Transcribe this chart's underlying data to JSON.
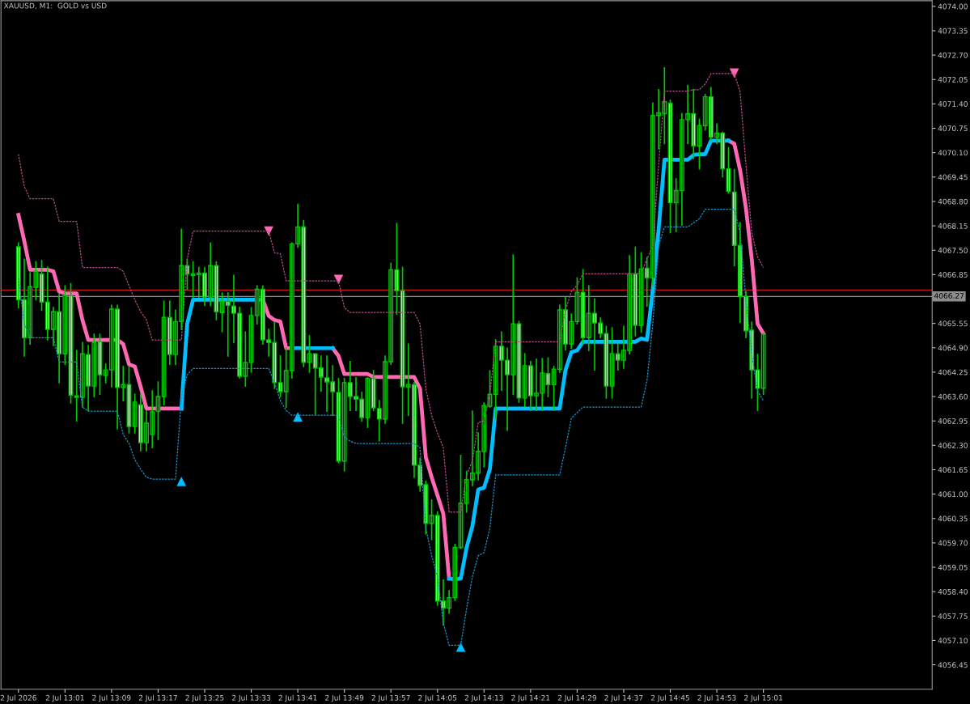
{
  "chart_data": {
    "type": "candlestick",
    "title": "XAUUSD, M1:  GOLD vs USD",
    "color": "#00c800",
    "x": [
      "2026-07-02T12:53",
      "2026-07-02T12:54",
      "2026-07-02T12:55",
      "2026-07-02T12:56",
      "2026-07-02T12:57",
      "2026-07-02T12:58",
      "2026-07-02T12:59",
      "2026-07-02T13:00",
      "2026-07-02T13:01",
      "2026-07-02T13:02",
      "2026-07-02T13:03",
      "2026-07-02T13:04",
      "2026-07-02T13:05",
      "2026-07-02T13:06",
      "2026-07-02T13:07",
      "2026-07-02T13:08",
      "2026-07-02T13:09",
      "2026-07-02T13:10",
      "2026-07-02T13:11",
      "2026-07-02T13:12",
      "2026-07-02T13:13",
      "2026-07-02T13:14",
      "2026-07-02T13:15",
      "2026-07-02T13:16",
      "2026-07-02T13:17",
      "2026-07-02T13:18",
      "2026-07-02T13:19",
      "2026-07-02T13:20",
      "2026-07-02T13:21",
      "2026-07-02T13:22",
      "2026-07-02T13:23",
      "2026-07-02T13:24",
      "2026-07-02T13:25",
      "2026-07-02T13:26",
      "2026-07-02T13:27",
      "2026-07-02T13:28",
      "2026-07-02T13:29",
      "2026-07-02T13:30",
      "2026-07-02T13:31",
      "2026-07-02T13:32",
      "2026-07-02T13:33",
      "2026-07-02T13:34",
      "2026-07-02T13:35",
      "2026-07-02T13:36",
      "2026-07-02T13:37",
      "2026-07-02T13:38",
      "2026-07-02T13:39",
      "2026-07-02T13:40",
      "2026-07-02T13:41",
      "2026-07-02T13:42",
      "2026-07-02T13:43",
      "2026-07-02T13:44",
      "2026-07-02T13:45",
      "2026-07-02T13:46",
      "2026-07-02T13:47",
      "2026-07-02T13:48",
      "2026-07-02T13:49",
      "2026-07-02T13:50",
      "2026-07-02T13:51",
      "2026-07-02T13:52",
      "2026-07-02T13:53",
      "2026-07-02T13:54",
      "2026-07-02T13:55",
      "2026-07-02T13:56",
      "2026-07-02T13:57",
      "2026-07-02T13:58",
      "2026-07-02T13:59",
      "2026-07-02T14:00",
      "2026-07-02T14:01",
      "2026-07-02T14:02",
      "2026-07-02T14:03",
      "2026-07-02T14:04",
      "2026-07-02T14:05",
      "2026-07-02T14:06",
      "2026-07-02T14:07",
      "2026-07-02T14:08",
      "2026-07-02T14:09",
      "2026-07-02T14:10",
      "2026-07-02T14:11",
      "2026-07-02T14:12",
      "2026-07-02T14:13",
      "2026-07-02T14:14",
      "2026-07-02T14:15",
      "2026-07-02T14:16",
      "2026-07-02T14:17",
      "2026-07-02T14:18",
      "2026-07-02T14:19",
      "2026-07-02T14:20",
      "2026-07-02T14:21",
      "2026-07-02T14:22",
      "2026-07-02T14:23",
      "2026-07-02T14:24",
      "2026-07-02T14:25",
      "2026-07-02T14:26",
      "2026-07-02T14:27",
      "2026-07-02T14:28",
      "2026-07-02T14:29",
      "2026-07-02T14:30",
      "2026-07-02T14:31",
      "2026-07-02T14:32",
      "2026-07-02T14:33",
      "2026-07-02T14:34",
      "2026-07-02T14:35",
      "2026-07-02T14:36",
      "2026-07-02T14:37",
      "2026-07-02T14:38",
      "2026-07-02T14:39",
      "2026-07-02T14:40",
      "2026-07-02T14:41",
      "2026-07-02T14:42",
      "2026-07-02T14:43",
      "2026-07-02T14:44",
      "2026-07-02T14:45",
      "2026-07-02T14:46",
      "2026-07-02T14:47",
      "2026-07-02T14:48",
      "2026-07-02T14:49",
      "2026-07-02T14:50",
      "2026-07-02T14:51",
      "2026-07-02T14:52",
      "2026-07-02T14:53",
      "2026-07-02T14:54",
      "2026-07-02T14:55",
      "2026-07-02T14:56",
      "2026-07-02T14:57",
      "2026-07-02T14:58",
      "2026-07-02T14:59",
      "2026-07-02T15:00",
      "2026-07-02T15:01"
    ],
    "ohlc": [
      [
        4067.59,
        4067.69,
        4065.97,
        4066.18
      ],
      [
        4066.18,
        4067.26,
        4064.68,
        4065.17
      ],
      [
        4065.17,
        4066.9,
        4065.0,
        4066.53
      ],
      [
        4066.51,
        4067.19,
        4066.18,
        4066.94
      ],
      [
        4066.87,
        4067.22,
        4065.9,
        4066.12
      ],
      [
        4066.12,
        4067.05,
        4065.11,
        4065.39
      ],
      [
        4065.39,
        4065.97,
        4064.96,
        4065.86
      ],
      [
        4065.86,
        4066.33,
        4063.97,
        4064.74
      ],
      [
        4064.74,
        4066.55,
        4064.46,
        4066.29
      ],
      [
        4066.29,
        4066.61,
        4063.43,
        4063.64
      ],
      [
        4063.62,
        4064.83,
        4062.95,
        4063.58
      ],
      [
        4063.58,
        4065.04,
        4063.32,
        4064.74
      ],
      [
        4064.72,
        4064.96,
        4063.23,
        4063.88
      ],
      [
        4063.88,
        4065.26,
        4063.6,
        4065.04
      ],
      [
        4065.06,
        4065.26,
        4063.66,
        4064.18
      ],
      [
        4064.16,
        4064.46,
        4063.97,
        4064.31
      ],
      [
        4064.31,
        4066.03,
        4063.86,
        4065.93
      ],
      [
        4065.93,
        4066.03,
        4062.74,
        4063.84
      ],
      [
        4063.84,
        4064.4,
        4063.49,
        4063.92
      ],
      [
        4063.92,
        4064.4,
        4062.63,
        4062.8
      ],
      [
        4062.8,
        4063.66,
        4062.63,
        4063.45
      ],
      [
        4063.38,
        4063.66,
        4062.16,
        4062.37
      ],
      [
        4062.37,
        4063.23,
        4062.16,
        4062.89
      ],
      [
        4062.59,
        4063.75,
        4062.24,
        4063.19
      ],
      [
        4063.21,
        4063.99,
        4062.46,
        4063.6
      ],
      [
        4063.6,
        4066.14,
        4063.38,
        4065.71
      ],
      [
        4065.71,
        4066.14,
        4064.46,
        4064.72
      ],
      [
        4064.72,
        4065.9,
        4064.46,
        4065.6
      ],
      [
        4065.6,
        4068.06,
        4065.39,
        4067.09
      ],
      [
        4067.09,
        4067.26,
        4066.46,
        4066.87
      ],
      [
        4066.83,
        4067.19,
        4066.25,
        4066.87
      ],
      [
        4066.85,
        4067.04,
        4066.25,
        4066.89
      ],
      [
        4066.89,
        4067.04,
        4066.03,
        4066.25
      ],
      [
        4066.25,
        4067.69,
        4066.03,
        4067.09
      ],
      [
        4067.09,
        4067.19,
        4065.65,
        4065.86
      ],
      [
        4065.84,
        4066.36,
        4065.33,
        4066.14
      ],
      [
        4066.14,
        4066.36,
        4064.68,
        4066.03
      ],
      [
        4066.01,
        4066.83,
        4065.04,
        4065.82
      ],
      [
        4065.82,
        4065.97,
        4064.1,
        4064.14
      ],
      [
        4064.14,
        4065.32,
        4063.88,
        4064.51
      ],
      [
        4064.51,
        4065.97,
        4064.25,
        4065.76
      ],
      [
        4065.76,
        4066.55,
        4065.54,
        4066.46
      ],
      [
        4066.46,
        4066.55,
        4065.0,
        4065.11
      ],
      [
        4065.11,
        4065.39,
        4064.68,
        4065.04
      ],
      [
        4065.04,
        4065.58,
        4063.82,
        4063.97
      ],
      [
        4063.97,
        4064.68,
        4063.6,
        4063.73
      ],
      [
        4063.73,
        4064.89,
        4063.32,
        4064.29
      ],
      [
        4064.29,
        4067.69,
        4064.1,
        4067.67
      ],
      [
        4067.67,
        4068.72,
        4067.58,
        4068.12
      ],
      [
        4068.12,
        4068.29,
        4064.4,
        4064.51
      ],
      [
        4064.51,
        4065.22,
        4064.25,
        4064.74
      ],
      [
        4064.74,
        4064.74,
        4063.13,
        4064.36
      ],
      [
        4064.36,
        4064.68,
        4063.75,
        4064.12
      ],
      [
        4064.1,
        4064.68,
        4063.21,
        4063.99
      ],
      [
        4063.99,
        4064.42,
        4063.1,
        4063.73
      ],
      [
        4063.71,
        4064.08,
        4061.84,
        4061.88
      ],
      [
        4061.88,
        4064.08,
        4061.62,
        4063.97
      ],
      [
        4063.97,
        4064.53,
        4063.23,
        4063.6
      ],
      [
        4063.6,
        4064.1,
        4063.23,
        4063.53
      ],
      [
        4063.53,
        4063.71,
        4062.95,
        4063.04
      ],
      [
        4063.04,
        4064.1,
        4062.78,
        4064.08
      ],
      [
        4064.08,
        4064.29,
        4063.23,
        4063.3
      ],
      [
        4063.28,
        4063.49,
        4062.42,
        4063.0
      ],
      [
        4063.0,
        4064.68,
        4062.89,
        4064.53
      ],
      [
        4064.53,
        4067.15,
        4064.46,
        4066.98
      ],
      [
        4066.98,
        4068.21,
        4065.8,
        4066.42
      ],
      [
        4066.42,
        4067.04,
        4062.89,
        4063.86
      ],
      [
        4063.86,
        4065.0,
        4063.1,
        4063.92
      ],
      [
        4063.92,
        4063.97,
        4061.45,
        4061.77
      ],
      [
        4061.77,
        4061.95,
        4061.08,
        4061.23
      ],
      [
        4061.25,
        4061.34,
        4059.94,
        4060.22
      ],
      [
        4060.22,
        4060.84,
        4059.79,
        4060.43
      ],
      [
        4060.43,
        4060.52,
        4058.04,
        4058.15
      ],
      [
        4058.15,
        4058.71,
        4057.51,
        4057.96
      ],
      [
        4057.96,
        4058.43,
        4057.83,
        4058.24
      ],
      [
        4058.24,
        4059.66,
        4058.17,
        4059.58
      ],
      [
        4059.58,
        4062.03,
        4059.55,
        4060.76
      ],
      [
        4060.76,
        4061.6,
        4060.52,
        4061.38
      ],
      [
        4061.38,
        4063.21,
        4061.23,
        4061.56
      ],
      [
        4061.56,
        4062.63,
        4061.38,
        4062.14
      ],
      [
        4062.14,
        4063.43,
        4061.73,
        4063.36
      ],
      [
        4063.34,
        4064.29,
        4063.32,
        4063.66
      ],
      [
        4063.66,
        4065.11,
        4063.02,
        4064.94
      ],
      [
        4064.94,
        4065.32,
        4063.77,
        4064.57
      ],
      [
        4064.57,
        4064.89,
        4062.7,
        4064.18
      ],
      [
        4064.18,
        4067.37,
        4063.66,
        4065.54
      ],
      [
        4065.54,
        4065.6,
        4063.45,
        4063.56
      ],
      [
        4063.56,
        4064.74,
        4063.34,
        4064.42
      ],
      [
        4064.42,
        4064.53,
        4063.23,
        4063.62
      ],
      [
        4063.62,
        4064.59,
        4063.23,
        4063.69
      ],
      [
        4063.69,
        4064.61,
        4063.23,
        4064.23
      ],
      [
        4064.21,
        4064.63,
        4063.6,
        4063.92
      ],
      [
        4063.92,
        4064.4,
        4063.23,
        4064.33
      ],
      [
        4064.33,
        4066.03,
        4064.25,
        4065.91
      ],
      [
        4065.91,
        4066.25,
        4064.85,
        4065.0
      ],
      [
        4065.0,
        4065.8,
        4064.89,
        4065.6
      ],
      [
        4065.6,
        4066.76,
        4065.54,
        4066.38
      ],
      [
        4066.38,
        4066.98,
        4065.0,
        4065.17
      ],
      [
        4065.17,
        4066.55,
        4064.83,
        4065.82
      ],
      [
        4065.82,
        4066.2,
        4064.31,
        4065.56
      ],
      [
        4065.56,
        4065.69,
        4065.17,
        4065.28
      ],
      [
        4065.28,
        4065.47,
        4063.56,
        4063.88
      ],
      [
        4063.88,
        4065.43,
        4063.56,
        4064.74
      ],
      [
        4064.74,
        4065.02,
        4064.31,
        4064.57
      ],
      [
        4064.57,
        4065.47,
        4064.36,
        4064.83
      ],
      [
        4064.83,
        4067.35,
        4064.74,
        4066.87
      ],
      [
        4066.87,
        4067.58,
        4065.22,
        4065.5
      ],
      [
        4065.5,
        4067.43,
        4065.32,
        4067.0
      ],
      [
        4067.02,
        4067.3,
        4066.01,
        4066.76
      ],
      [
        4066.76,
        4071.42,
        4066.55,
        4071.09
      ],
      [
        4071.09,
        4071.78,
        4070.21,
        4071.16
      ],
      [
        4071.14,
        4072.36,
        4070.34,
        4071.46
      ],
      [
        4071.42,
        4071.5,
        4067.97,
        4068.77
      ],
      [
        4068.77,
        4069.4,
        4068.0,
        4069.09
      ],
      [
        4069.09,
        4071.14,
        4068.17,
        4070.98
      ],
      [
        4070.98,
        4071.89,
        4070.34,
        4071.14
      ],
      [
        4071.14,
        4071.78,
        4069.95,
        4070.28
      ],
      [
        4070.28,
        4070.99,
        4069.67,
        4070.82
      ],
      [
        4070.82,
        4071.65,
        4070.71,
        4071.59
      ],
      [
        4071.59,
        4071.83,
        4070.45,
        4070.51
      ],
      [
        4070.51,
        4070.86,
        4070.34,
        4070.62
      ],
      [
        4070.62,
        4070.64,
        4069.46,
        4069.67
      ],
      [
        4069.67,
        4070.23,
        4069.03,
        4069.07
      ],
      [
        4069.05,
        4069.65,
        4067.09,
        4067.63
      ],
      [
        4067.63,
        4068.23,
        4065.58,
        4066.27
      ],
      [
        4066.27,
        4066.4,
        4065.17,
        4065.35
      ],
      [
        4065.37,
        4065.58,
        4063.56,
        4064.31
      ],
      [
        4064.31,
        4064.72,
        4063.23,
        4063.82
      ],
      [
        4063.82,
        4065.28,
        4063.66,
        4065.26
      ]
    ],
    "series": [
      {
        "type": "line",
        "color": "#b04c86",
        "line_style": "dashed",
        "values": [
          4070.06,
          4069.2,
          4068.87,
          4068.87,
          4068.87,
          4068.87,
          4068.87,
          4068.27,
          4068.27,
          4068.27,
          4068.27,
          4067.04,
          4067.04,
          4067.04,
          4067.04,
          4067.04,
          4067.04,
          4067.04,
          4066.94,
          4066.55,
          4066.18,
          4065.86,
          4065.64,
          4065.11,
          4065.11,
          4065.11,
          4065.11,
          4065.11,
          4065.11,
          4067.26,
          4068.01,
          4068.01,
          4068.01,
          4068.01,
          4068.01,
          4068.01,
          4068.01,
          4068.01,
          4068.01,
          4068.01,
          4068.01,
          4068.01,
          4068.01,
          4068.01,
          4067.43,
          4067.41,
          4066.68,
          4066.68,
          4066.68,
          4066.68,
          4066.68,
          4066.68,
          4066.68,
          4066.68,
          4066.68,
          4066.68,
          4065.97,
          4065.84,
          4065.84,
          4065.84,
          4065.84,
          4065.84,
          4065.84,
          4065.84,
          4065.84,
          4065.84,
          4065.84,
          4065.84,
          4065.84,
          4065.54,
          4063.81,
          4063.1,
          4062.63,
          4062.24,
          4060.52,
          4060.52,
          4060.52,
          4061.51,
          4061.88,
          4062.91,
          4062.95,
          4063.66,
          4065.06,
          4065.06,
          4065.06,
          4065.06,
          4065.06,
          4065.06,
          4065.06,
          4065.06,
          4065.06,
          4065.06,
          4065.06,
          4065.06,
          4065.9,
          4066.4,
          4066.57,
          4066.87,
          4066.87,
          4066.87,
          4066.87,
          4066.87,
          4066.87,
          4066.87,
          4066.87,
          4066.87,
          4066.87,
          4066.89,
          4067.26,
          4067.63,
          4069.78,
          4071.74,
          4071.74,
          4071.74,
          4071.74,
          4071.74,
          4071.78,
          4071.78,
          4071.93,
          4072.21,
          4072.21,
          4072.21,
          4072.21,
          4072.21,
          4071.72,
          4069.78,
          4067.97,
          4067.32,
          4067.04
        ]
      },
      {
        "type": "line",
        "color": "#1c8fc4",
        "line_style": "dashed",
        "values": [
          4066.76,
          4065.54,
          4065.17,
          4065.17,
          4065.17,
          4065.17,
          4065.17,
          4064.52,
          4064.52,
          4064.52,
          4064.52,
          4063.32,
          4063.21,
          4063.21,
          4063.21,
          4063.21,
          4063.21,
          4063.21,
          4062.59,
          4062.35,
          4061.92,
          4061.66,
          4061.45,
          4061.4,
          4061.4,
          4061.4,
          4061.4,
          4061.4,
          4063.6,
          4064.18,
          4064.35,
          4064.35,
          4064.35,
          4064.35,
          4064.35,
          4064.35,
          4064.35,
          4064.35,
          4064.35,
          4064.35,
          4064.35,
          4064.35,
          4064.35,
          4064.35,
          4063.97,
          4063.49,
          4063.23,
          4063.1,
          4063.1,
          4063.1,
          4063.1,
          4063.1,
          4063.1,
          4063.1,
          4063.1,
          4063.1,
          4062.52,
          4062.41,
          4062.35,
          4062.35,
          4062.35,
          4062.35,
          4062.35,
          4062.35,
          4062.35,
          4062.35,
          4062.35,
          4062.35,
          4062.35,
          4062.24,
          4060.09,
          4059.36,
          4058.8,
          4057.57,
          4056.97,
          4056.97,
          4056.97,
          4057.94,
          4058.8,
          4059.36,
          4059.44,
          4060.09,
          4061.51,
          4061.51,
          4061.51,
          4061.51,
          4061.51,
          4061.51,
          4061.51,
          4061.51,
          4061.51,
          4061.51,
          4061.51,
          4061.51,
          4062.24,
          4063.02,
          4063.17,
          4063.32,
          4063.32,
          4063.32,
          4063.32,
          4063.32,
          4063.32,
          4063.32,
          4063.32,
          4063.32,
          4063.32,
          4063.32,
          4064.03,
          4065.54,
          4067.63,
          4068.12,
          4068.12,
          4068.12,
          4068.12,
          4068.12,
          4068.23,
          4068.34,
          4068.59,
          4068.59,
          4068.59,
          4068.59,
          4068.59,
          4068.59,
          4067.97,
          4066.18,
          4064.74,
          4063.75,
          4063.49
        ]
      },
      {
        "type": "line",
        "color": "#ff69b4",
        "line_style": "solid",
        "values": [
          4068.44,
          4067.75,
          4066.98,
          4066.98,
          4066.98,
          4066.98,
          4066.94,
          4066.4,
          4066.35,
          4066.35,
          4066.35,
          4065.64,
          4065.11,
          4065.11,
          4065.11,
          4065.11,
          4065.11,
          4065.11,
          4065.0,
          4064.46,
          4064.4,
          4063.86,
          4063.28,
          4063.28,
          4063.28,
          4063.28,
          4063.28,
          4063.28,
          4063.28,
          null,
          null,
          null,
          null,
          null,
          null,
          null,
          null,
          null,
          null,
          null,
          null,
          null,
          4066.18,
          4065.75,
          4065.64,
          4065.6,
          4064.89,
          4064.89,
          null,
          null,
          null,
          null,
          null,
          null,
          4064.89,
          4064.68,
          4064.2,
          4064.2,
          4064.2,
          4064.2,
          4064.2,
          4064.12,
          4064.12,
          4064.12,
          4064.12,
          4064.12,
          4064.12,
          4064.12,
          4064.12,
          4063.81,
          4061.98,
          4061.45,
          4060.97,
          4060.48,
          4058.75,
          null,
          null,
          null,
          null,
          null,
          null,
          null,
          null,
          null,
          null,
          null,
          null,
          null,
          null,
          null,
          null,
          null,
          null,
          null,
          null,
          null,
          null,
          null,
          null,
          null,
          null,
          null,
          null,
          null,
          null,
          null,
          null,
          null,
          null,
          null,
          null,
          null,
          null,
          null,
          null,
          null,
          null,
          null,
          null,
          null,
          null,
          null,
          4070.42,
          4070.34,
          4069.63,
          4068.62,
          4067.26,
          4065.54,
          4065.28
        ]
      },
      {
        "type": "line",
        "color": "#00bfff",
        "line_style": "solid",
        "values": [
          null,
          null,
          null,
          null,
          null,
          null,
          null,
          null,
          null,
          null,
          null,
          null,
          null,
          null,
          null,
          null,
          null,
          null,
          null,
          null,
          null,
          null,
          null,
          null,
          null,
          null,
          null,
          null,
          4063.28,
          4065.54,
          4066.18,
          4066.18,
          4066.18,
          4066.18,
          4066.18,
          4066.18,
          4066.18,
          4066.18,
          4066.18,
          4066.18,
          4066.18,
          4066.18,
          4066.18,
          null,
          null,
          null,
          null,
          4064.89,
          4064.89,
          4064.89,
          4064.89,
          4064.89,
          4064.89,
          4064.89,
          4064.89,
          null,
          null,
          null,
          null,
          null,
          null,
          null,
          null,
          null,
          null,
          null,
          null,
          null,
          null,
          null,
          null,
          null,
          null,
          null,
          4058.75,
          4058.73,
          4058.75,
          4059.57,
          4060.15,
          4061.12,
          4061.17,
          4061.66,
          4063.28,
          4063.28,
          4063.28,
          4063.28,
          4063.28,
          4063.28,
          4063.28,
          4063.28,
          4063.28,
          4063.28,
          4063.28,
          4063.28,
          4064.31,
          4064.78,
          4064.83,
          4065.06,
          4065.06,
          4065.06,
          4065.06,
          4065.06,
          4065.06,
          4065.06,
          4065.06,
          4065.06,
          4065.06,
          4065.15,
          4065.11,
          4066.46,
          4068.06,
          4069.91,
          4069.91,
          4069.91,
          4069.91,
          4069.91,
          4070.04,
          4070.06,
          4070.06,
          4070.42,
          4070.42,
          4070.42,
          4070.42,
          null,
          null,
          null,
          null,
          null,
          null
        ]
      },
      {
        "type": "scatter",
        "color": "#00bfff",
        "marker": "triangle",
        "x": [
          "2026-07-02T13:21",
          "2026-07-02T13:41",
          "2026-07-02T14:09"
        ],
        "values": [
          4061.34,
          4063.06,
          4056.92
        ]
      },
      {
        "type": "scatter",
        "color": "#ff69b4",
        "marker": "triangle",
        "x": [
          "2026-07-02T13:36",
          "2026-07-02T13:48",
          "2026-07-02T14:56"
        ],
        "values": [
          4068.01,
          4066.72,
          4072.22
        ]
      }
    ],
    "ref_lines": [
      {
        "axis": "y",
        "value": 4066.44,
        "color": "#d01010"
      },
      {
        "axis": "y",
        "value": 4066.27,
        "label": "4066.27",
        "color": "#8c8c8c"
      }
    ],
    "xlim": [
      "2026-07-02T12:50",
      "2026-07-02T15:30"
    ],
    "xticks": [
      {
        "value": "2026-07-02T12:53",
        "label": "2 Jul 2026"
      },
      {
        "value": "2026-07-02T13:01",
        "label": "2 Jul 13:01"
      },
      {
        "value": "2026-07-02T13:09",
        "label": "2 Jul 13:09"
      },
      {
        "value": "2026-07-02T13:17",
        "label": "2 Jul 13:17"
      },
      {
        "value": "2026-07-02T13:25",
        "label": "2 Jul 13:25"
      },
      {
        "value": "2026-07-02T13:33",
        "label": "2 Jul 13:33"
      },
      {
        "value": "2026-07-02T13:41",
        "label": "2 Jul 13:41"
      },
      {
        "value": "2026-07-02T13:49",
        "label": "2 Jul 13:49"
      },
      {
        "value": "2026-07-02T13:57",
        "label": "2 Jul 13:57"
      },
      {
        "value": "2026-07-02T14:05",
        "label": "2 Jul 14:05"
      },
      {
        "value": "2026-07-02T14:13",
        "label": "2 Jul 14:13"
      },
      {
        "value": "2026-07-02T14:21",
        "label": "2 Jul 14:21"
      },
      {
        "value": "2026-07-02T14:29",
        "label": "2 Jul 14:29"
      },
      {
        "value": "2026-07-02T14:37",
        "label": "2 Jul 14:37"
      },
      {
        "value": "2026-07-02T14:45",
        "label": "2 Jul 14:45"
      },
      {
        "value": "2026-07-02T14:53",
        "label": "2 Jul 14:53"
      },
      {
        "value": "2026-07-02T15:01",
        "label": "2 Jul 15:01"
      }
    ],
    "ylim": [
      4055.8,
      4074.15
    ],
    "yticks": [
      {
        "value": 4074.0,
        "label": "4074.00"
      },
      {
        "value": 4073.35,
        "label": "4073.35"
      },
      {
        "value": 4072.7,
        "label": "4072.70"
      },
      {
        "value": 4072.05,
        "label": "4072.05"
      },
      {
        "value": 4071.4,
        "label": "4071.40"
      },
      {
        "value": 4070.75,
        "label": "4070.75"
      },
      {
        "value": 4070.1,
        "label": "4070.10"
      },
      {
        "value": 4069.45,
        "label": "4069.45"
      },
      {
        "value": 4068.8,
        "label": "4068.80"
      },
      {
        "value": 4068.15,
        "label": "4068.15"
      },
      {
        "value": 4067.5,
        "label": "4067.50"
      },
      {
        "value": 4066.85,
        "label": "4066.85"
      },
      {
        "value": 4066.2,
        "label": null
      },
      {
        "value": 4065.55,
        "label": "4065.55"
      },
      {
        "value": 4064.9,
        "label": "4064.90"
      },
      {
        "value": 4064.25,
        "label": "4064.25"
      },
      {
        "value": 4063.6,
        "label": "4063.60"
      },
      {
        "value": 4062.95,
        "label": "4062.95"
      },
      {
        "value": 4062.3,
        "label": "4062.30"
      },
      {
        "value": 4061.65,
        "label": "4061.65"
      },
      {
        "value": 4061.0,
        "label": "4061.00"
      },
      {
        "value": 4060.35,
        "label": "4060.35"
      },
      {
        "value": 4059.7,
        "label": "4059.70"
      },
      {
        "value": 4059.05,
        "label": "4059.05"
      },
      {
        "value": 4058.4,
        "label": "4058.40"
      },
      {
        "value": 4057.75,
        "label": "4057.75"
      },
      {
        "value": 4057.1,
        "label": "4057.10"
      },
      {
        "value": 4056.45,
        "label": "4056.45"
      }
    ]
  }
}
